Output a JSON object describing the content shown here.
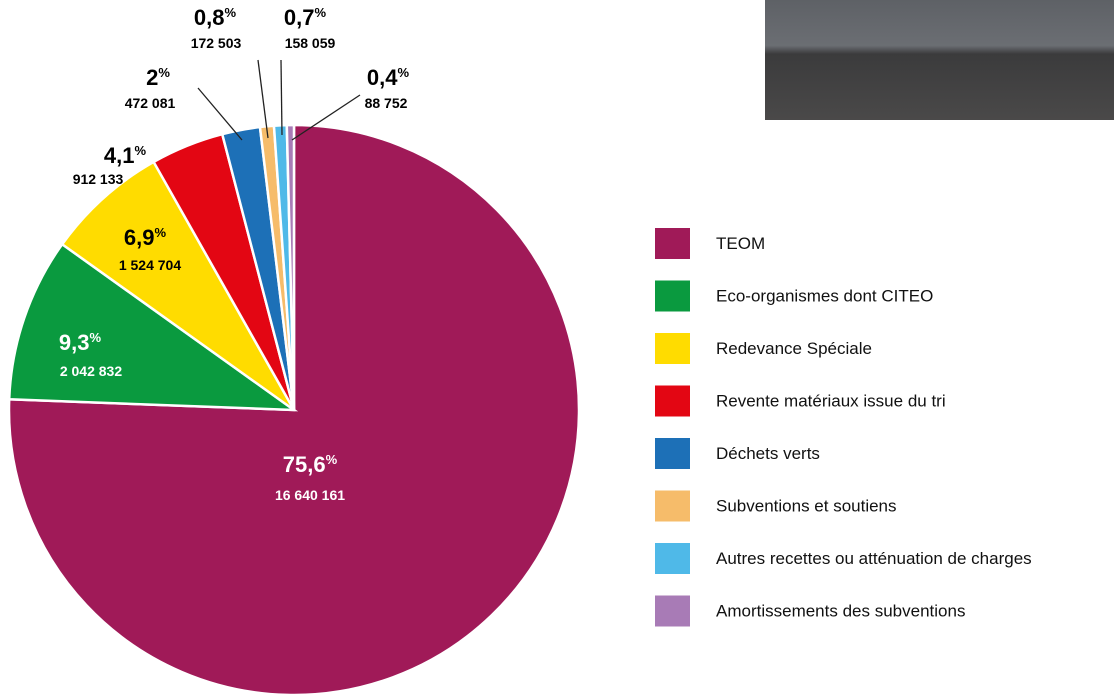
{
  "chart_data": {
    "type": "pie",
    "categories": [
      "TEOM",
      "Eco-organismes dont CITEO",
      "Redevance Spéciale",
      "Revente matériaux issue du tri",
      "Déchets verts",
      "Subventions et soutiens",
      "Autres recettes ou atténuation de charges",
      "Amortissements des subventions"
    ],
    "values": [
      16640161,
      2042832,
      1524704,
      912133,
      472081,
      172503,
      158059,
      88752
    ],
    "value_labels": [
      "16 640 161",
      "2 042 832",
      "1 524 704",
      "912 133",
      "472 081",
      "172 503",
      "158 059",
      "88 752"
    ],
    "percentages": [
      75.6,
      9.3,
      6.9,
      4.1,
      2,
      0.8,
      0.7,
      0.4
    ],
    "percentage_labels": [
      "75,6%",
      "9,3%",
      "6,9%",
      "4,1%",
      "2%",
      "0,8%",
      "0,7%",
      "0,4%"
    ],
    "colors": [
      "#a01a58",
      "#0a9a3f",
      "#ffdc00",
      "#e30613",
      "#1d70b7",
      "#f6bc6a",
      "#4fb9e8",
      "#a87bb6"
    ],
    "start": "top",
    "direction": "clockwise",
    "legend": "right"
  }
}
